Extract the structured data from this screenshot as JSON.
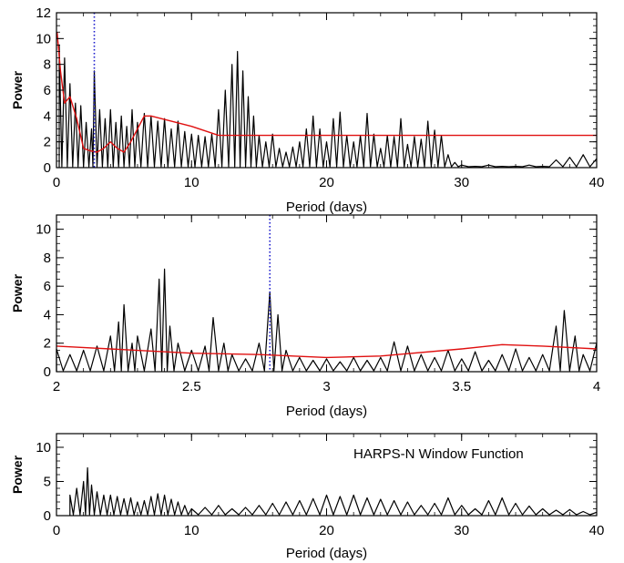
{
  "chart_data": [
    {
      "type": "line",
      "title": "",
      "xlabel": "Period (days)",
      "ylabel": "Power",
      "xlim": [
        0,
        40
      ],
      "ylim": [
        0,
        12
      ],
      "xticks": [
        "0",
        "10",
        "20",
        "30",
        "40"
      ],
      "yticks": [
        "0",
        "2",
        "4",
        "6",
        "8",
        "10",
        "12"
      ],
      "grid": false,
      "vline": {
        "x": 2.8,
        "style": "dotted",
        "color": "#1a1acc"
      },
      "series": [
        {
          "style": "periodogram",
          "color": "#000000",
          "x": [
            0.2,
            0.6,
            1.0,
            1.4,
            1.8,
            2.2,
            2.6,
            2.8,
            3.2,
            3.6,
            4.0,
            4.4,
            4.8,
            5.2,
            5.6,
            6.0,
            6.5,
            7.0,
            7.5,
            8.0,
            8.5,
            9.0,
            9.5,
            10.0,
            10.5,
            11.0,
            11.5,
            12.0,
            12.5,
            13.0,
            13.4,
            13.8,
            14.2,
            14.6,
            15.0,
            15.5,
            16.0,
            16.5,
            17.0,
            17.5,
            18.0,
            18.5,
            19.0,
            19.5,
            20.0,
            20.5,
            21.0,
            21.5,
            22.0,
            22.5,
            23.0,
            23.5,
            24.0,
            24.5,
            25.0,
            25.5,
            26.0,
            26.5,
            27.0,
            27.5,
            28.0,
            28.5,
            29.0,
            29.5,
            30.0,
            31.0,
            32.0,
            33.0,
            34.0,
            35.0,
            36.0,
            37.0,
            38.0,
            39.0,
            40.0
          ],
          "y": [
            9.5,
            8.5,
            6.5,
            5.0,
            4.8,
            3.5,
            3.0,
            7.5,
            4.5,
            3.8,
            4.5,
            3.5,
            4.0,
            3.2,
            4.5,
            3.5,
            4.2,
            4.0,
            3.6,
            3.8,
            3.0,
            3.6,
            2.8,
            2.6,
            2.5,
            2.4,
            2.6,
            4.5,
            6.0,
            8.0,
            9.0,
            7.5,
            5.5,
            4.0,
            2.5,
            2.0,
            2.6,
            1.5,
            1.2,
            1.6,
            2.0,
            3.0,
            4.0,
            3.0,
            2.0,
            3.8,
            4.3,
            2.5,
            2.0,
            2.5,
            4.2,
            2.6,
            1.5,
            2.5,
            2.4,
            3.8,
            1.8,
            2.4,
            2.2,
            3.6,
            2.9,
            2.5,
            1.0,
            0.4,
            0.2,
            0.1,
            0.2,
            0.1,
            0.1,
            0.2,
            0.1,
            0.6,
            0.8,
            1.0,
            0.7
          ]
        },
        {
          "style": "line",
          "color": "#e01010",
          "x": [
            0.05,
            0.3,
            0.6,
            1.0,
            1.5,
            2.0,
            2.5,
            3.0,
            3.5,
            4.0,
            4.5,
            5.0,
            5.5,
            6.0,
            6.5,
            7.0,
            10.0,
            12.0,
            15.0,
            20.0,
            25.0,
            30.0,
            35.0,
            40.0
          ],
          "y": [
            10.5,
            7.5,
            5.0,
            5.5,
            3.8,
            1.5,
            1.3,
            1.2,
            1.5,
            2.0,
            1.5,
            1.2,
            2.0,
            3.0,
            4.0,
            4.0,
            3.2,
            2.5,
            2.5,
            2.5,
            2.5,
            2.5,
            2.5,
            2.5
          ]
        }
      ]
    },
    {
      "type": "line",
      "title": "",
      "xlabel": "Period (days)",
      "ylabel": "Power",
      "xlim": [
        2,
        4
      ],
      "ylim": [
        0,
        11
      ],
      "xticks": [
        "2",
        "2.5",
        "3",
        "3.5",
        "4"
      ],
      "yticks": [
        "0",
        "2",
        "4",
        "6",
        "8",
        "10"
      ],
      "grid": false,
      "vline": {
        "x": 2.79,
        "style": "dotted",
        "color": "#1a1acc"
      },
      "series": [
        {
          "style": "periodogram",
          "color": "#000000",
          "x": [
            2.0,
            2.05,
            2.1,
            2.15,
            2.2,
            2.23,
            2.25,
            2.28,
            2.3,
            2.35,
            2.38,
            2.4,
            2.42,
            2.45,
            2.5,
            2.55,
            2.58,
            2.62,
            2.65,
            2.7,
            2.75,
            2.79,
            2.82,
            2.85,
            2.9,
            2.95,
            3.0,
            3.05,
            3.1,
            3.15,
            3.2,
            3.25,
            3.3,
            3.35,
            3.4,
            3.45,
            3.5,
            3.55,
            3.6,
            3.65,
            3.7,
            3.75,
            3.8,
            3.85,
            3.88,
            3.92,
            3.95,
            4.0
          ],
          "y": [
            1.6,
            1.2,
            1.5,
            1.8,
            2.5,
            3.5,
            4.7,
            2.0,
            2.5,
            3.0,
            6.5,
            7.2,
            3.2,
            2.0,
            1.5,
            1.8,
            3.8,
            2.0,
            1.2,
            0.9,
            2.0,
            5.6,
            4.0,
            1.5,
            1.0,
            0.8,
            0.9,
            0.7,
            1.0,
            0.8,
            1.0,
            2.1,
            1.8,
            1.2,
            1.0,
            1.5,
            0.9,
            1.4,
            0.8,
            1.2,
            1.6,
            1.0,
            1.2,
            3.2,
            4.3,
            2.5,
            1.2,
            2.0
          ]
        },
        {
          "style": "line",
          "color": "#e01010",
          "x": [
            2.0,
            2.5,
            2.75,
            3.0,
            3.2,
            3.5,
            3.65,
            3.8,
            4.0
          ],
          "y": [
            1.8,
            1.3,
            1.2,
            1.0,
            1.1,
            1.6,
            1.9,
            1.8,
            1.6
          ]
        }
      ]
    },
    {
      "type": "line",
      "title": "",
      "xlabel": "Period (days)",
      "ylabel": "Power",
      "xlim": [
        0,
        40
      ],
      "ylim": [
        0,
        12
      ],
      "xticks": [
        "0",
        "10",
        "20",
        "30",
        "40"
      ],
      "yticks": [
        "0",
        "5",
        "10"
      ],
      "grid": false,
      "annotation": "HARPS-N Window Function",
      "series": [
        {
          "style": "periodogram",
          "color": "#000000",
          "x": [
            1.0,
            1.5,
            2.0,
            2.3,
            2.6,
            3.0,
            3.5,
            4.0,
            4.5,
            5.0,
            5.5,
            6.0,
            6.5,
            7.0,
            7.5,
            8.0,
            8.5,
            9.0,
            9.5,
            10.0,
            11.0,
            12.0,
            13.0,
            14.0,
            15.0,
            16.0,
            17.0,
            18.0,
            19.0,
            20.0,
            21.0,
            22.0,
            23.0,
            24.0,
            25.0,
            26.0,
            27.0,
            28.0,
            29.0,
            30.0,
            31.0,
            32.0,
            33.0,
            34.0,
            35.0,
            36.0,
            37.0,
            38.0,
            39.0,
            40.0
          ],
          "y": [
            3.0,
            4.0,
            5.0,
            7.0,
            4.5,
            3.5,
            3.0,
            3.0,
            2.8,
            2.5,
            2.6,
            2.0,
            2.2,
            2.8,
            3.2,
            3.0,
            2.4,
            2.0,
            1.5,
            1.0,
            1.2,
            1.5,
            1.0,
            1.2,
            1.5,
            1.8,
            2.0,
            2.2,
            2.5,
            3.0,
            2.8,
            3.0,
            2.6,
            2.4,
            2.2,
            2.0,
            1.5,
            1.8,
            2.6,
            1.5,
            1.0,
            2.2,
            2.6,
            1.8,
            1.4,
            1.0,
            0.8,
            0.9,
            0.6,
            0.5
          ]
        }
      ]
    }
  ]
}
